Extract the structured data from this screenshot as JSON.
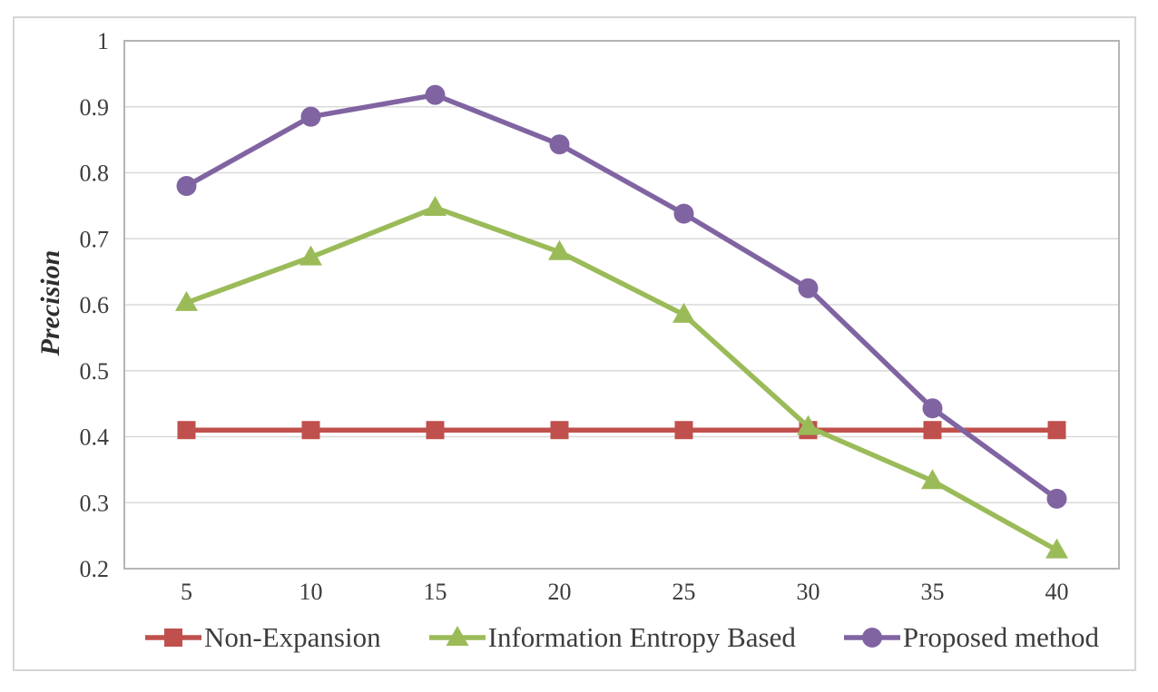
{
  "figure": {
    "background": "#ffffff",
    "frame_border_color": "#d6d6d6"
  },
  "chart_data": {
    "type": "line",
    "title": "",
    "xlabel": "",
    "ylabel": "Precision",
    "x": [
      5,
      10,
      15,
      20,
      25,
      30,
      35,
      40
    ],
    "x_tick_labels": [
      "5",
      "10",
      "15",
      "20",
      "25",
      "30",
      "35",
      "40"
    ],
    "y_ticks": [
      1,
      0.9,
      0.8,
      0.7,
      0.6,
      0.5,
      0.4,
      0.3,
      0.2
    ],
    "y_tick_labels": [
      "1",
      "0.9",
      "0.8",
      "0.7",
      "0.6",
      "0.5",
      "0.4",
      "0.3",
      "0.2"
    ],
    "ylim": [
      0.2,
      1
    ],
    "grid": "horizontal",
    "legend_position": "bottom",
    "series": [
      {
        "name": "Non-Expansion",
        "marker": "square",
        "color": "#c0504d",
        "values": [
          0.41,
          0.41,
          0.41,
          0.41,
          0.41,
          0.41,
          0.41,
          0.41
        ]
      },
      {
        "name": "Information Entropy Based",
        "marker": "triangle",
        "color": "#9bbb59",
        "values": [
          0.603,
          0.672,
          0.747,
          0.68,
          0.585,
          0.415,
          0.333,
          0.228
        ]
      },
      {
        "name": "Proposed method",
        "marker": "circle",
        "color": "#8064a2",
        "values": [
          0.78,
          0.885,
          0.918,
          0.843,
          0.738,
          0.625,
          0.443,
          0.306
        ]
      }
    ],
    "colors": {
      "grid": "#dadada",
      "plot_border": "#b5b5b5",
      "tick_text": "#3d3d3d",
      "legend_text": "#3d3d3d",
      "axis_title_text": "#2e2e2e"
    }
  }
}
